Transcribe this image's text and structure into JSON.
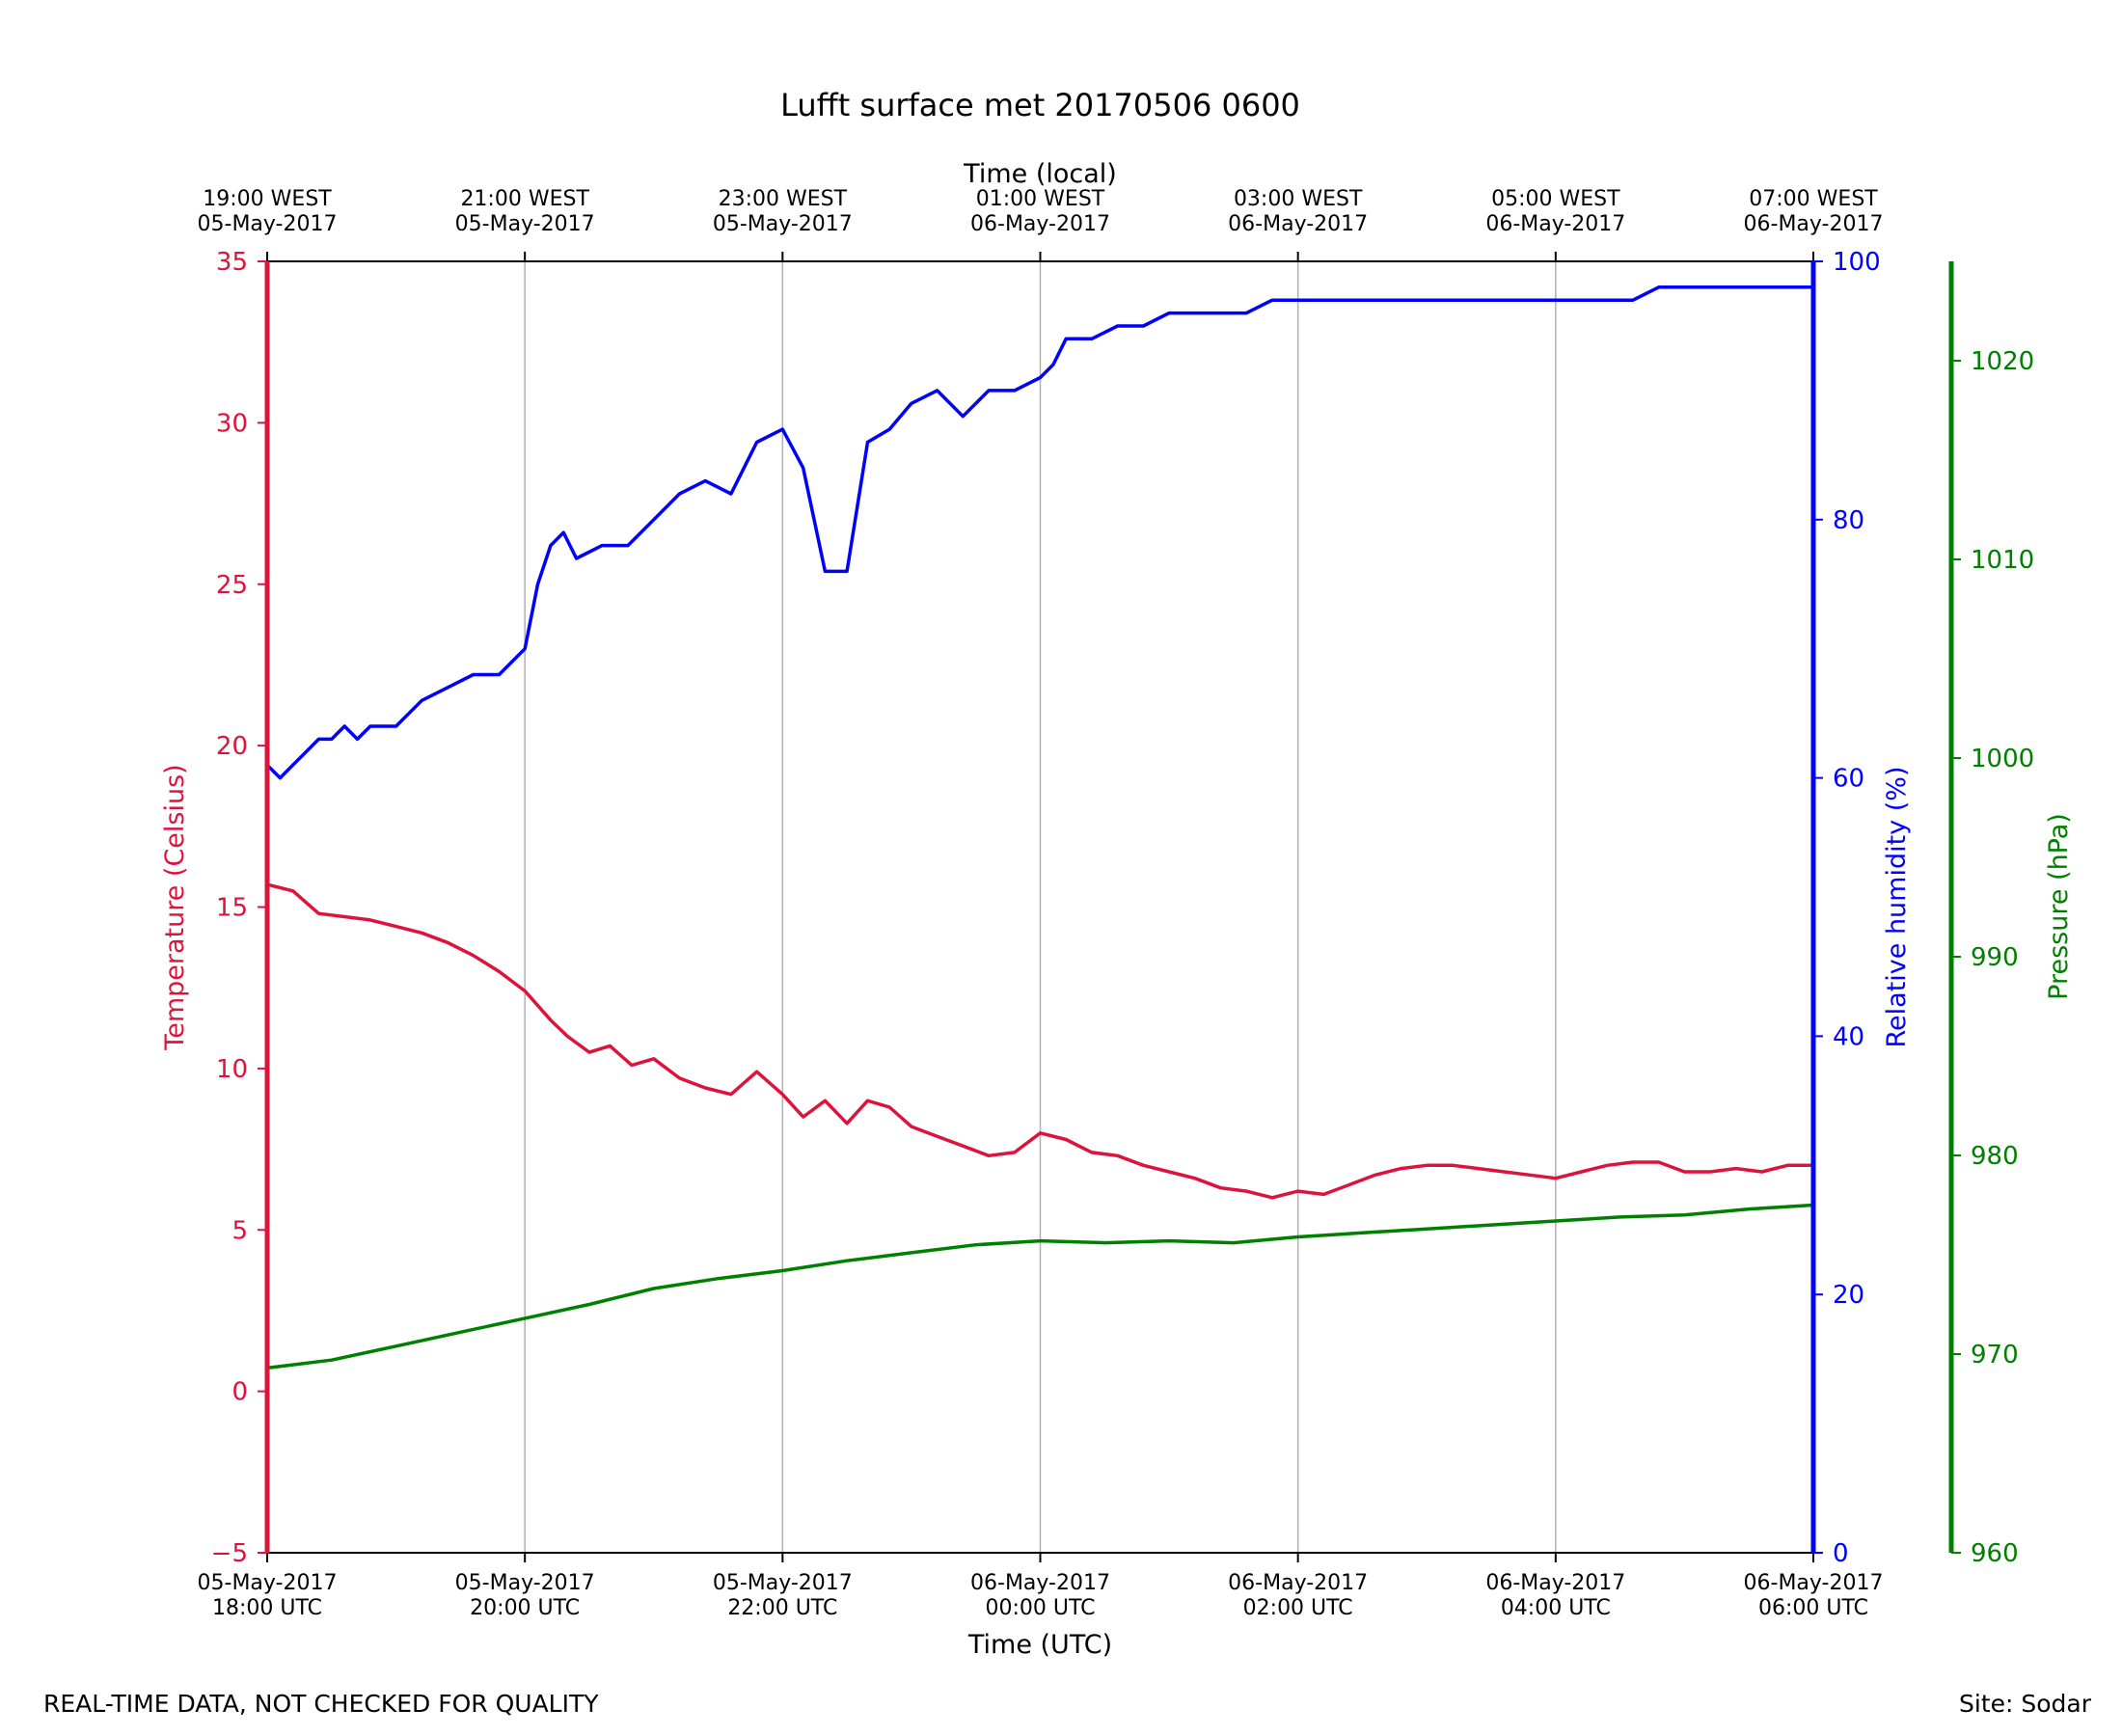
{
  "chart_data": {
    "type": "line",
    "title": "Lufft surface met 20170506 0600",
    "xlabel": "Time (UTC)",
    "xlabel_top": "Time (local)",
    "x_range_hours_utc": [
      18,
      30
    ],
    "x_ticks_bottom": [
      {
        "h": 18,
        "line1": "05-May-2017",
        "line2": "18:00 UTC"
      },
      {
        "h": 20,
        "line1": "05-May-2017",
        "line2": "20:00 UTC"
      },
      {
        "h": 22,
        "line1": "05-May-2017",
        "line2": "22:00 UTC"
      },
      {
        "h": 24,
        "line1": "06-May-2017",
        "line2": "00:00 UTC"
      },
      {
        "h": 26,
        "line1": "06-May-2017",
        "line2": "02:00 UTC"
      },
      {
        "h": 28,
        "line1": "06-May-2017",
        "line2": "04:00 UTC"
      },
      {
        "h": 30,
        "line1": "06-May-2017",
        "line2": "06:00 UTC"
      }
    ],
    "x_ticks_top": [
      {
        "h": 18,
        "line1": "19:00 WEST",
        "line2": "05-May-2017"
      },
      {
        "h": 20,
        "line1": "21:00 WEST",
        "line2": "05-May-2017"
      },
      {
        "h": 22,
        "line1": "23:00 WEST",
        "line2": "05-May-2017"
      },
      {
        "h": 24,
        "line1": "01:00 WEST",
        "line2": "06-May-2017"
      },
      {
        "h": 26,
        "line1": "03:00 WEST",
        "line2": "06-May-2017"
      },
      {
        "h": 28,
        "line1": "05:00 WEST",
        "line2": "06-May-2017"
      },
      {
        "h": 30,
        "line1": "07:00 WEST",
        "line2": "06-May-2017"
      }
    ],
    "vertical_grid": true,
    "axes": {
      "temperature": {
        "label": "Temperature (Celsius)",
        "range": [
          -5,
          35
        ],
        "ticks": [
          -5,
          0,
          5,
          10,
          15,
          20,
          25,
          30,
          35
        ],
        "tick_labels": [
          "−5",
          "0",
          "5",
          "10",
          "15",
          "20",
          "25",
          "30",
          "35"
        ],
        "color": "#dc143c",
        "side": "left"
      },
      "humidity": {
        "label": "Relative humidity (%)",
        "range": [
          0,
          100
        ],
        "ticks": [
          0,
          20,
          40,
          60,
          80,
          100
        ],
        "tick_labels": [
          "0",
          "20",
          "40",
          "60",
          "80",
          "100"
        ],
        "color": "#0000ff",
        "side": "right"
      },
      "pressure": {
        "label": "Pressure (hPa)",
        "range": [
          960,
          1025
        ],
        "ticks": [
          960,
          970,
          980,
          990,
          1000,
          1010,
          1020
        ],
        "tick_labels": [
          "960",
          "970",
          "980",
          "990",
          "1000",
          "1010",
          "1020"
        ],
        "color": "#008000",
        "side": "right-offset"
      }
    },
    "series": [
      {
        "name": "Temperature",
        "axis": "temperature",
        "color": "#dc143c",
        "points": [
          [
            18.0,
            15.7
          ],
          [
            18.2,
            15.5
          ],
          [
            18.4,
            14.8
          ],
          [
            18.6,
            14.7
          ],
          [
            18.8,
            14.6
          ],
          [
            19.0,
            14.4
          ],
          [
            19.2,
            14.2
          ],
          [
            19.4,
            13.9
          ],
          [
            19.6,
            13.5
          ],
          [
            19.8,
            13.0
          ],
          [
            20.0,
            12.4
          ],
          [
            20.2,
            11.5
          ],
          [
            20.33,
            11.0
          ],
          [
            20.5,
            10.5
          ],
          [
            20.66,
            10.7
          ],
          [
            20.83,
            10.1
          ],
          [
            21.0,
            10.3
          ],
          [
            21.2,
            9.7
          ],
          [
            21.4,
            9.4
          ],
          [
            21.6,
            9.2
          ],
          [
            21.8,
            9.9
          ],
          [
            22.0,
            9.2
          ],
          [
            22.16,
            8.5
          ],
          [
            22.33,
            9.0
          ],
          [
            22.5,
            8.3
          ],
          [
            22.66,
            9.0
          ],
          [
            22.83,
            8.8
          ],
          [
            23.0,
            8.2
          ],
          [
            23.2,
            7.9
          ],
          [
            23.4,
            7.6
          ],
          [
            23.6,
            7.3
          ],
          [
            23.8,
            7.4
          ],
          [
            24.0,
            8.0
          ],
          [
            24.2,
            7.8
          ],
          [
            24.4,
            7.4
          ],
          [
            24.6,
            7.3
          ],
          [
            24.8,
            7.0
          ],
          [
            25.0,
            6.8
          ],
          [
            25.2,
            6.6
          ],
          [
            25.4,
            6.3
          ],
          [
            25.6,
            6.2
          ],
          [
            25.8,
            6.0
          ],
          [
            26.0,
            6.2
          ],
          [
            26.2,
            6.1
          ],
          [
            26.4,
            6.4
          ],
          [
            26.6,
            6.7
          ],
          [
            26.8,
            6.9
          ],
          [
            27.0,
            7.0
          ],
          [
            27.2,
            7.0
          ],
          [
            27.4,
            6.9
          ],
          [
            27.6,
            6.8
          ],
          [
            27.8,
            6.7
          ],
          [
            28.0,
            6.6
          ],
          [
            28.2,
            6.8
          ],
          [
            28.4,
            7.0
          ],
          [
            28.6,
            7.1
          ],
          [
            28.8,
            7.1
          ],
          [
            29.0,
            6.8
          ],
          [
            29.2,
            6.8
          ],
          [
            29.4,
            6.9
          ],
          [
            29.6,
            6.8
          ],
          [
            29.8,
            7.0
          ],
          [
            30.0,
            7.0
          ]
        ]
      },
      {
        "name": "Relative humidity",
        "axis": "humidity",
        "color": "#0000ff",
        "points": [
          [
            18.0,
            61
          ],
          [
            18.1,
            60
          ],
          [
            18.2,
            61
          ],
          [
            18.3,
            62
          ],
          [
            18.4,
            63
          ],
          [
            18.5,
            63
          ],
          [
            18.6,
            64
          ],
          [
            18.7,
            63
          ],
          [
            18.8,
            64
          ],
          [
            19.0,
            64
          ],
          [
            19.2,
            66
          ],
          [
            19.4,
            67
          ],
          [
            19.6,
            68
          ],
          [
            19.8,
            68
          ],
          [
            19.9,
            69
          ],
          [
            20.0,
            70
          ],
          [
            20.1,
            75
          ],
          [
            20.2,
            78
          ],
          [
            20.3,
            79
          ],
          [
            20.4,
            77
          ],
          [
            20.6,
            78
          ],
          [
            20.8,
            78
          ],
          [
            21.0,
            80
          ],
          [
            21.2,
            82
          ],
          [
            21.4,
            83
          ],
          [
            21.6,
            82
          ],
          [
            21.8,
            86
          ],
          [
            22.0,
            87
          ],
          [
            22.16,
            84
          ],
          [
            22.33,
            76
          ],
          [
            22.5,
            76
          ],
          [
            22.66,
            86
          ],
          [
            22.83,
            87
          ],
          [
            23.0,
            89
          ],
          [
            23.2,
            90
          ],
          [
            23.4,
            88
          ],
          [
            23.6,
            90
          ],
          [
            23.8,
            90
          ],
          [
            24.0,
            91
          ],
          [
            24.1,
            92
          ],
          [
            24.2,
            94
          ],
          [
            24.4,
            94
          ],
          [
            24.6,
            95
          ],
          [
            24.8,
            95
          ],
          [
            25.0,
            96
          ],
          [
            25.2,
            96
          ],
          [
            25.4,
            96
          ],
          [
            25.6,
            96
          ],
          [
            25.8,
            97
          ],
          [
            26.0,
            97
          ],
          [
            26.2,
            97
          ],
          [
            26.4,
            97
          ],
          [
            26.6,
            97
          ],
          [
            26.8,
            97
          ],
          [
            27.0,
            97
          ],
          [
            27.2,
            97
          ],
          [
            27.4,
            97
          ],
          [
            27.6,
            97
          ],
          [
            27.8,
            97
          ],
          [
            28.0,
            97
          ],
          [
            28.2,
            97
          ],
          [
            28.4,
            97
          ],
          [
            28.6,
            97
          ],
          [
            28.8,
            98
          ],
          [
            29.0,
            98
          ],
          [
            29.2,
            98
          ],
          [
            29.4,
            98
          ],
          [
            29.6,
            98
          ],
          [
            29.8,
            98
          ],
          [
            30.0,
            98
          ]
        ]
      },
      {
        "name": "Pressure",
        "axis": "pressure",
        "color": "#008000",
        "points": [
          [
            18.0,
            969.3
          ],
          [
            18.5,
            969.7
          ],
          [
            19.0,
            970.4
          ],
          [
            19.5,
            971.1
          ],
          [
            20.0,
            971.8
          ],
          [
            20.5,
            972.5
          ],
          [
            21.0,
            973.3
          ],
          [
            21.5,
            973.8
          ],
          [
            22.0,
            974.2
          ],
          [
            22.5,
            974.7
          ],
          [
            23.0,
            975.1
          ],
          [
            23.5,
            975.5
          ],
          [
            24.0,
            975.7
          ],
          [
            24.5,
            975.6
          ],
          [
            25.0,
            975.7
          ],
          [
            25.5,
            975.6
          ],
          [
            26.0,
            975.9
          ],
          [
            26.5,
            976.1
          ],
          [
            27.0,
            976.3
          ],
          [
            27.5,
            976.5
          ],
          [
            28.0,
            976.7
          ],
          [
            28.5,
            976.9
          ],
          [
            29.0,
            977.0
          ],
          [
            29.5,
            977.3
          ],
          [
            30.0,
            977.5
          ]
        ]
      }
    ]
  },
  "footer": {
    "left": "REAL-TIME DATA, NOT CHECKED FOR QUALITY",
    "right": "Site: Sodar"
  }
}
